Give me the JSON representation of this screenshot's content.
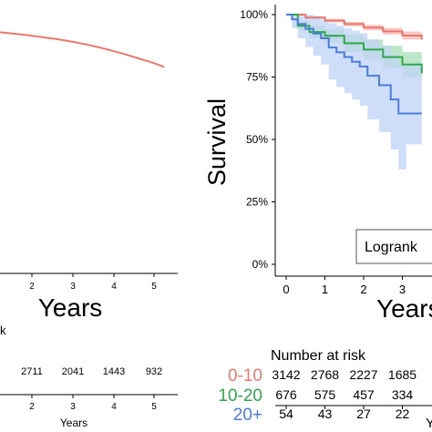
{
  "chart_data": [
    {
      "type": "line",
      "title": "",
      "xlabel": "Years",
      "ylabel": "",
      "xlim": [
        0,
        5.3
      ],
      "x_ticks": [
        "2",
        "3",
        "4",
        "5"
      ],
      "series": [
        {
          "color": "#E8796F",
          "x": [
            0,
            0.5,
            1,
            1.5,
            2,
            2.5,
            3,
            3.5,
            4,
            4.5,
            5,
            5.3
          ],
          "y": [
            99.8,
            99.2,
            98.6,
            97.8,
            97.0,
            96.0,
            94.8,
            93.4,
            91.8,
            90.0,
            88.2,
            86.8
          ]
        }
      ],
      "risk_table": {
        "heading_fragment": "k",
        "values": [
          "2711",
          "2041",
          "1443",
          "932"
        ],
        "x_ticks": [
          "2",
          "3",
          "4",
          "5"
        ],
        "xlabel": "Years"
      }
    },
    {
      "type": "line",
      "title": "",
      "xlabel": "Years",
      "ylabel": "Survival",
      "ylim": [
        0,
        100
      ],
      "xlim": [
        0,
        3.5
      ],
      "y_ticks": [
        "0%",
        "25%",
        "50%",
        "75%",
        "100%"
      ],
      "x_ticks": [
        "0",
        "1",
        "2",
        "3"
      ],
      "annotation": "Logrank",
      "series": [
        {
          "name": "0-10",
          "color": "#E8796F",
          "band": "#F4B6B0",
          "x": [
            0,
            0.5,
            1,
            1.5,
            2,
            2.5,
            3,
            3.5
          ],
          "y": [
            100,
            98.8,
            97.6,
            96.2,
            94.8,
            93.3,
            91.6,
            90.0
          ],
          "lo": [
            100,
            98.3,
            96.9,
            95.3,
            93.7,
            92.0,
            90.0,
            88.0
          ],
          "hi": [
            100,
            99.3,
            98.3,
            97.1,
            95.9,
            94.6,
            93.2,
            92.0
          ]
        },
        {
          "name": "10-20",
          "color": "#2EA84A",
          "band": "#A8DDB5",
          "x": [
            0,
            0.3,
            0.6,
            1,
            1.5,
            2,
            2.5,
            3,
            3.5
          ],
          "y": [
            100,
            95.5,
            93.0,
            91.5,
            88.5,
            86.0,
            83.0,
            80.0,
            76.5
          ],
          "lo": [
            100,
            93.5,
            90.5,
            88.5,
            85.0,
            82.0,
            78.5,
            75.0,
            70.5
          ],
          "hi": [
            100,
            97.5,
            95.5,
            94.0,
            92.0,
            90.0,
            87.5,
            85.0,
            82.5
          ]
        },
        {
          "name": "20+",
          "color": "#4A7DDB",
          "band": "#BFD3F5",
          "x": [
            0,
            0.15,
            0.3,
            0.5,
            0.7,
            0.9,
            1.1,
            1.3,
            1.5,
            1.7,
            1.9,
            2.1,
            2.4,
            2.7,
            2.9,
            3.1,
            3.5
          ],
          "y": [
            100,
            98.1,
            96.2,
            94.3,
            92.4,
            90.5,
            86.8,
            84.9,
            83.0,
            81.1,
            79.2,
            75.5,
            71.7,
            66.0,
            60.4,
            60.4,
            60.4
          ],
          "lo": [
            100,
            94.5,
            90.5,
            87.0,
            83.5,
            80.0,
            74.0,
            71.0,
            68.5,
            66.0,
            63.5,
            58.0,
            53.0,
            46.0,
            38.0,
            48.0,
            48.0
          ],
          "hi": [
            100,
            100,
            100,
            100,
            99.5,
            98.0,
            96.5,
            95.5,
            94.5,
            93.5,
            92.5,
            90.0,
            87.5,
            84.0,
            80.0,
            80.0,
            80.0
          ]
        }
      ],
      "risk_table": {
        "title": "Number at risk",
        "rows": [
          {
            "label": "0-10",
            "color": "#E8796F",
            "values": [
              "3142",
              "2768",
              "2227",
              "1685"
            ]
          },
          {
            "label": "10-20",
            "color": "#2EA84A",
            "values": [
              "676",
              "575",
              "457",
              "334"
            ]
          },
          {
            "label": "20+",
            "color": "#4A7DDB",
            "values": [
              "54",
              "43",
              "27",
              "22"
            ]
          }
        ],
        "xlabel_fragment": "Y"
      }
    }
  ]
}
